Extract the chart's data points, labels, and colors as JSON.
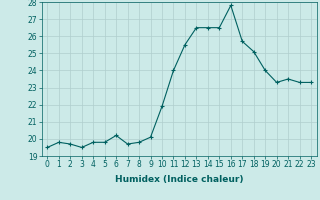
{
  "x": [
    0,
    1,
    2,
    3,
    4,
    5,
    6,
    7,
    8,
    9,
    10,
    11,
    12,
    13,
    14,
    15,
    16,
    17,
    18,
    19,
    20,
    21,
    22,
    23
  ],
  "y": [
    19.5,
    19.8,
    19.7,
    19.5,
    19.8,
    19.8,
    20.2,
    19.7,
    19.8,
    20.1,
    21.9,
    24.0,
    25.5,
    26.5,
    26.5,
    26.5,
    27.8,
    25.7,
    25.1,
    24.0,
    23.3,
    23.5,
    23.3,
    23.3
  ],
  "line_color": "#006060",
  "marker": "+",
  "marker_size": 3,
  "bg_color": "#cceae8",
  "grid_color": "#b0cece",
  "xlabel": "Humidex (Indice chaleur)",
  "ylim": [
    19,
    28
  ],
  "yticks": [
    19,
    20,
    21,
    22,
    23,
    24,
    25,
    26,
    27,
    28
  ],
  "xticks": [
    0,
    1,
    2,
    3,
    4,
    5,
    6,
    7,
    8,
    9,
    10,
    11,
    12,
    13,
    14,
    15,
    16,
    17,
    18,
    19,
    20,
    21,
    22,
    23
  ],
  "tick_fontsize": 5.5,
  "xlabel_fontsize": 6.5
}
